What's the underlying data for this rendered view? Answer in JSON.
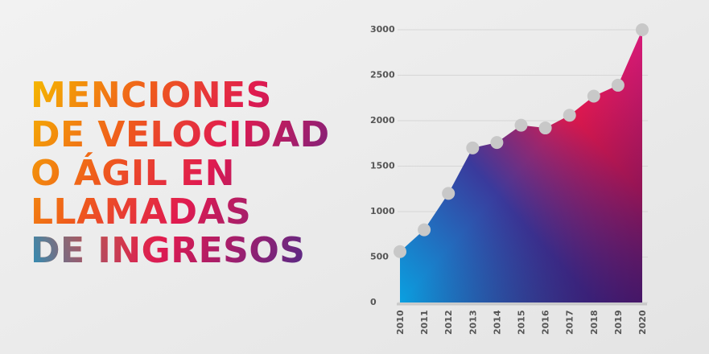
{
  "chart_data": {
    "type": "area",
    "title_lines": [
      "MENCIONES",
      "DE VELOCIDAD",
      "O ÁGIL EN",
      "LLAMADAS",
      "DE  INGRESOS"
    ],
    "categories": [
      "2010",
      "2011",
      "2012",
      "2013",
      "2014",
      "2015",
      "2016",
      "2017",
      "2018",
      "2019",
      "2020"
    ],
    "values": [
      560,
      800,
      1200,
      1700,
      1760,
      1950,
      1920,
      2060,
      2270,
      2390,
      3000
    ],
    "ylim": [
      0,
      3000
    ],
    "yticks": [
      0,
      500,
      1000,
      1500,
      2000,
      2500,
      3000
    ],
    "grid": true,
    "marker_color": "#c8c8c8"
  }
}
